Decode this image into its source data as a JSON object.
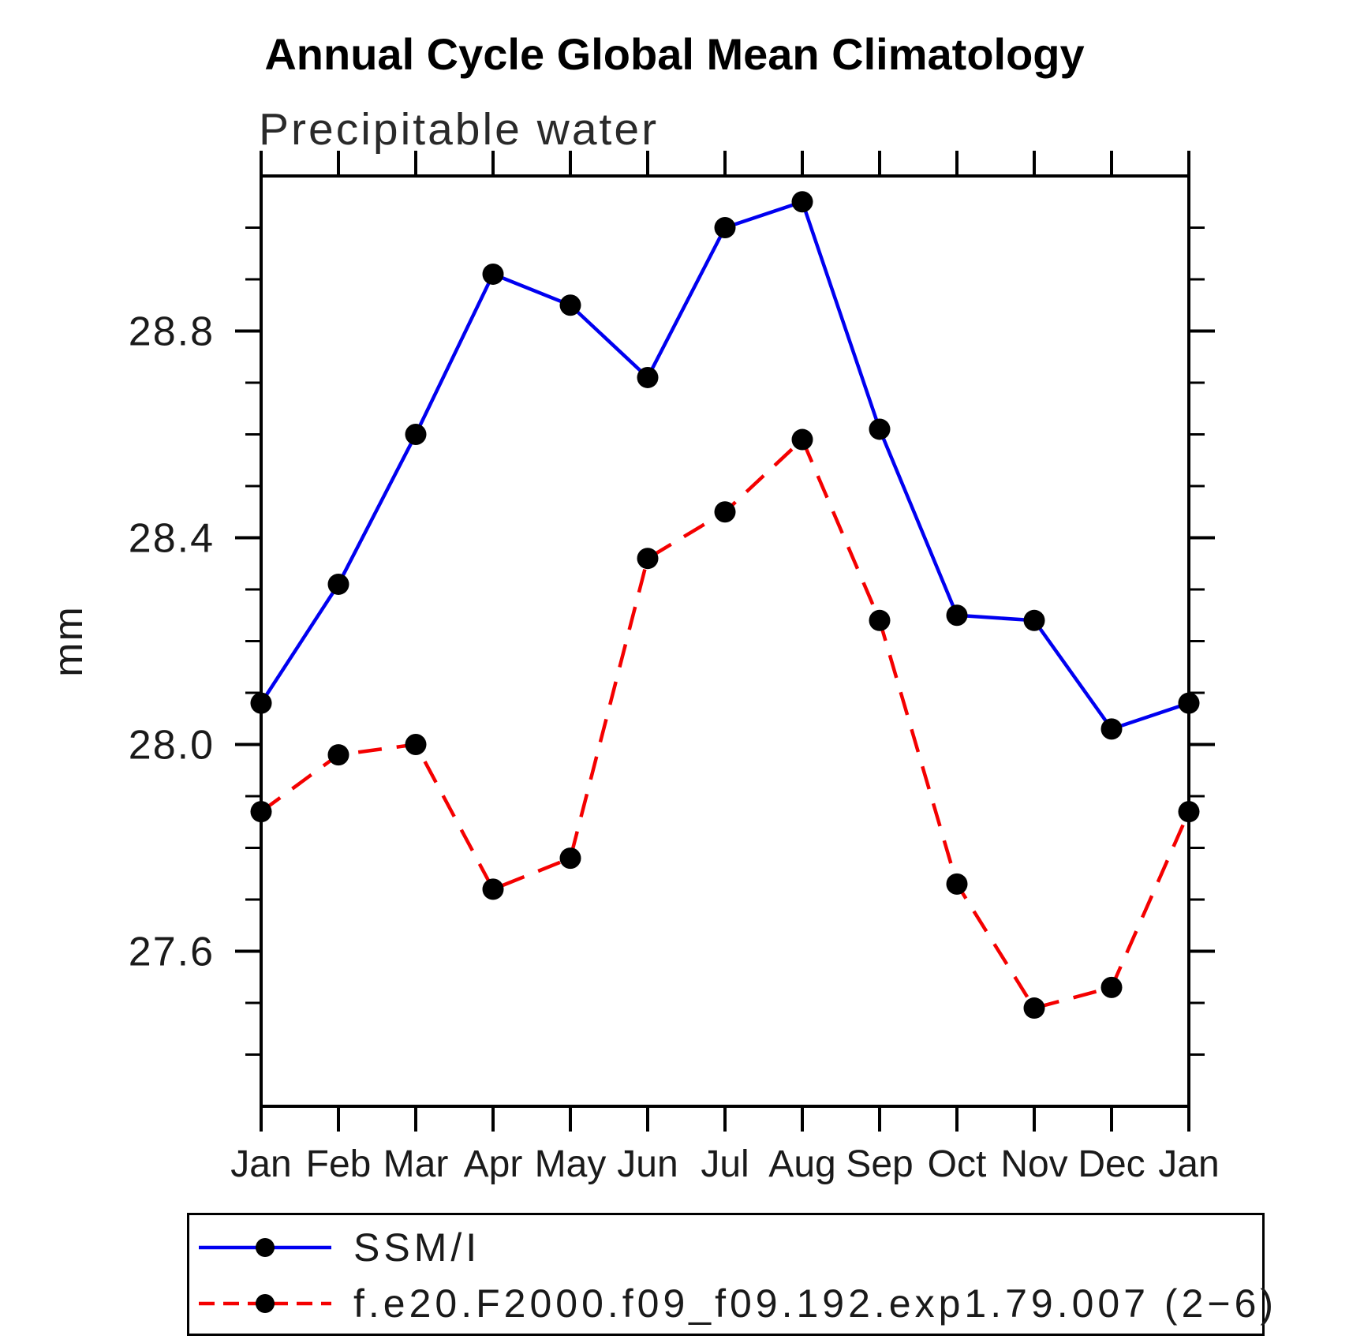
{
  "title": "Annual Cycle Global Mean Climatology",
  "subtitle": "Precipitable water",
  "ylabel": "mm",
  "colors": {
    "axis": "#000000",
    "marker": "#000000",
    "ssmi_line": "#0000f0",
    "model_line": "#f40000",
    "text": "#1a1a1a"
  },
  "chart_data": {
    "type": "line",
    "title": "Annual Cycle Global Mean Climatology",
    "subtitle": "Precipitable water",
    "xlabel": "",
    "ylabel": "mm",
    "categories": [
      "Jan",
      "Feb",
      "Mar",
      "Apr",
      "May",
      "Jun",
      "Jul",
      "Aug",
      "Sep",
      "Oct",
      "Nov",
      "Dec",
      "Jan"
    ],
    "series": [
      {
        "name": "SSM/I",
        "color": "#0000f0",
        "style": "solid",
        "marker": "circle",
        "values": [
          28.08,
          28.31,
          28.6,
          28.91,
          28.85,
          28.71,
          29.0,
          29.05,
          28.61,
          28.25,
          28.24,
          28.03,
          28.08
        ]
      },
      {
        "name": "f.e20.F2000.f09_f09.192.exp1.79.007 (2−6)",
        "color": "#f40000",
        "style": "dashed",
        "marker": "circle",
        "values": [
          27.87,
          27.98,
          28.0,
          27.72,
          27.78,
          28.36,
          28.45,
          28.59,
          28.24,
          27.73,
          27.49,
          27.53,
          27.87
        ]
      }
    ],
    "ylim": [
      27.3,
      29.1
    ],
    "yticks": [
      27.6,
      28.0,
      28.4,
      28.8
    ],
    "ytick_labels": [
      "27.6",
      "28.0",
      "28.4",
      "28.8"
    ],
    "minor_tick_step": 0.1,
    "grid": false,
    "legend_position": "bottom"
  },
  "legend": {
    "entries": [
      {
        "label": "SSM/I"
      },
      {
        "label": "f.e20.F2000.f09_f09.192.exp1.79.007 (2−6)"
      }
    ]
  }
}
